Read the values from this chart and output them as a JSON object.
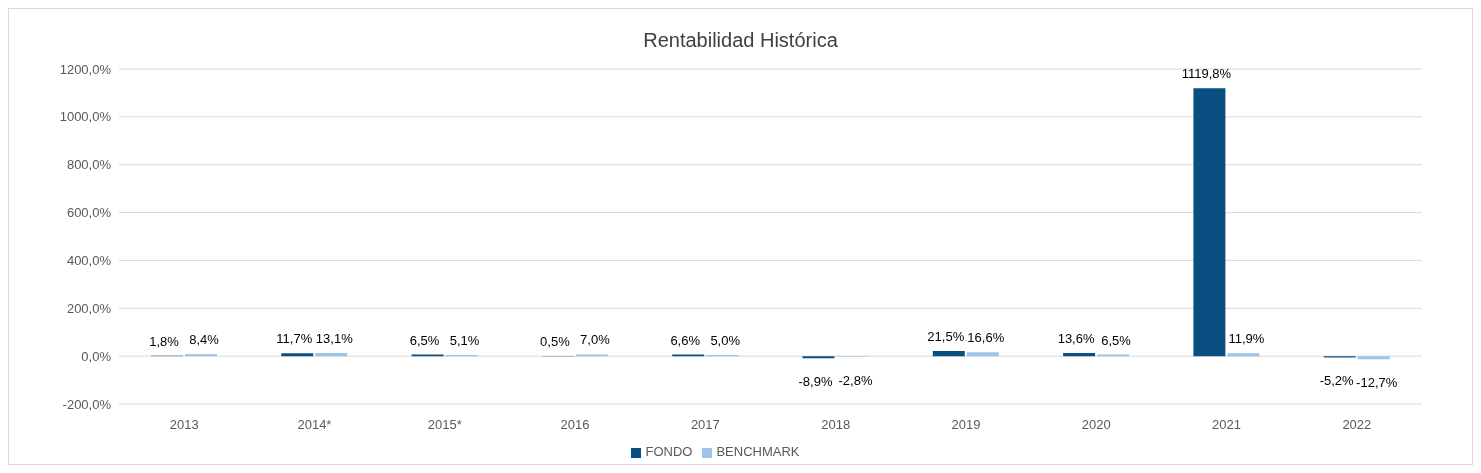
{
  "chart_data": {
    "type": "bar",
    "title": "Rentabilidad Histórica",
    "categories": [
      "2013",
      "2014*",
      "2015*",
      "2016",
      "2017",
      "2018",
      "2019",
      "2020",
      "2021",
      "2022"
    ],
    "series": [
      {
        "name": "FONDO",
        "color": "#0b4f82",
        "values": [
          1.8,
          11.7,
          6.5,
          0.5,
          6.6,
          -8.9,
          21.5,
          13.6,
          1119.8,
          -5.2
        ],
        "value_labels": [
          "1,8%",
          "11,7%",
          "6,5%",
          "0,5%",
          "6,6%",
          "-8,9%",
          "21,5%",
          "13,6%",
          "1119,8%",
          "-5,2%"
        ]
      },
      {
        "name": "BENCHMARK",
        "color": "#9dc3e6",
        "values": [
          8.4,
          13.1,
          5.1,
          7.0,
          5.0,
          -2.8,
          16.6,
          6.5,
          11.9,
          -12.7
        ],
        "value_labels": [
          "8,4%",
          "13,1%",
          "5,1%",
          "7,0%",
          "5,0%",
          "-2,8%",
          "16,6%",
          "6,5%",
          "11,9%",
          "-12,7%"
        ]
      }
    ],
    "ylim": [
      -200,
      1200
    ],
    "yticks": [
      {
        "value": -200,
        "label": "-200,0%"
      },
      {
        "value": 0,
        "label": "0,0%"
      },
      {
        "value": 200,
        "label": "200,0%"
      },
      {
        "value": 400,
        "label": "400,0%"
      },
      {
        "value": 600,
        "label": "600,0%"
      },
      {
        "value": 800,
        "label": "800,0%"
      },
      {
        "value": 1000,
        "label": "1000,0%"
      },
      {
        "value": 1200,
        "label": "1200,0%"
      }
    ],
    "grid": "y",
    "legend": "bottom"
  }
}
